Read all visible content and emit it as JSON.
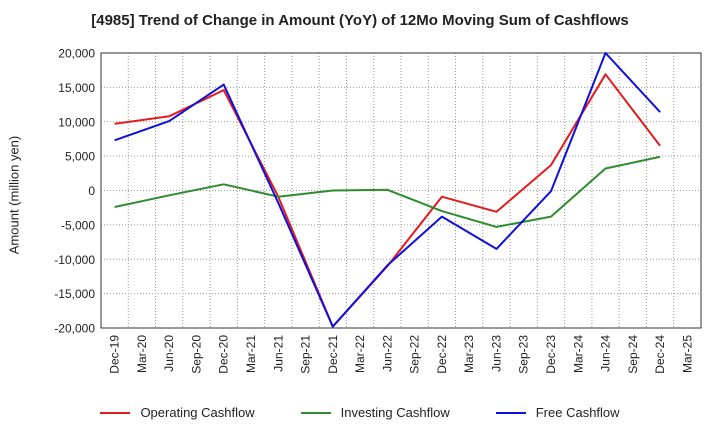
{
  "chart_data": {
    "type": "line",
    "title": "[4985]  Trend of Change in Amount (YoY) of 12Mo Moving Sum of Cashflows",
    "xlabel": "",
    "ylabel": "Amount (million yen)",
    "ylim": [
      -20000,
      20000
    ],
    "yticks": [
      20000,
      15000,
      10000,
      5000,
      0,
      -5000,
      -10000,
      -15000,
      -20000
    ],
    "ytick_labels": [
      "20,000",
      "15,000",
      "10,000",
      "5,000",
      "0",
      "-5,000",
      "-10,000",
      "-15,000",
      "-20,000"
    ],
    "categories": [
      "Dec-19",
      "Mar-20",
      "Jun-20",
      "Sep-20",
      "Dec-20",
      "Mar-21",
      "Jun-21",
      "Sep-21",
      "Dec-21",
      "Mar-22",
      "Jun-22",
      "Sep-22",
      "Dec-22",
      "Mar-23",
      "Jun-23",
      "Sep-23",
      "Dec-23",
      "Mar-24",
      "Jun-24",
      "Sep-24",
      "Dec-24",
      "Mar-25"
    ],
    "grid": true,
    "legend_position": "bottom",
    "series": [
      {
        "name": "Operating Cashflow",
        "color": "#e41a1c",
        "points": [
          [
            0,
            9700
          ],
          [
            2,
            10800
          ],
          [
            4,
            14600
          ],
          [
            6,
            -900
          ],
          [
            8,
            -19800
          ],
          [
            10,
            -11000
          ],
          [
            12,
            -900
          ],
          [
            14,
            -3100
          ],
          [
            16,
            3700
          ],
          [
            18,
            16900
          ],
          [
            20,
            6500
          ]
        ]
      },
      {
        "name": "Investing Cashflow",
        "color": "#2e8b2e",
        "points": [
          [
            0,
            -2400
          ],
          [
            2,
            -700
          ],
          [
            4,
            900
          ],
          [
            6,
            -900
          ],
          [
            8,
            0
          ],
          [
            10,
            100
          ],
          [
            12,
            -3000
          ],
          [
            14,
            -5300
          ],
          [
            16,
            -3800
          ],
          [
            18,
            3200
          ],
          [
            20,
            4900
          ]
        ]
      },
      {
        "name": "Free Cashflow",
        "color": "#1010dd",
        "points": [
          [
            0,
            7300
          ],
          [
            2,
            10100
          ],
          [
            4,
            15400
          ],
          [
            6,
            -1800
          ],
          [
            8,
            -19800
          ],
          [
            10,
            -10900
          ],
          [
            12,
            -3800
          ],
          [
            14,
            -8500
          ],
          [
            16,
            -100
          ],
          [
            18,
            20000
          ],
          [
            20,
            11400
          ]
        ]
      }
    ]
  }
}
